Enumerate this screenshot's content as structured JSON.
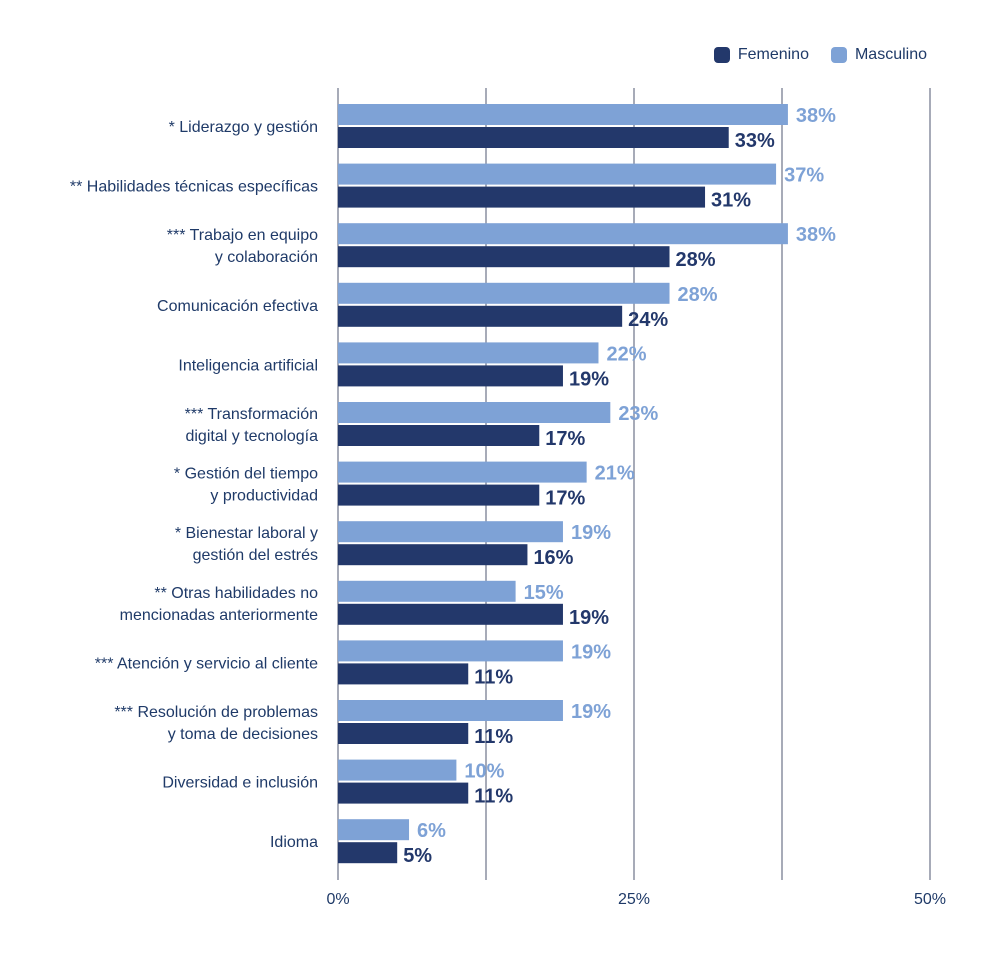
{
  "chart_data": {
    "type": "bar",
    "orientation": "horizontal",
    "categories": [
      [
        "* Liderazgo y gestión"
      ],
      [
        "** Habilidades técnicas específicas"
      ],
      [
        "*** Trabajo en equipo",
        "y colaboración"
      ],
      [
        "Comunicación efectiva"
      ],
      [
        "Inteligencia artificial"
      ],
      [
        "*** Transformación",
        "digital y tecnología"
      ],
      [
        "* Gestión del tiempo",
        "y productividad"
      ],
      [
        "* Bienestar laboral y",
        "gestión del estrés"
      ],
      [
        "** Otras habilidades no",
        "mencionadas anteriormente"
      ],
      [
        "*** Atención y servicio al cliente"
      ],
      [
        "*** Resolución de problemas",
        "y toma de decisiones"
      ],
      [
        "Diversidad e inclusión"
      ],
      [
        "Idioma"
      ]
    ],
    "series": [
      {
        "name": "Masculino",
        "color": "#7ea2d6",
        "values": [
          38,
          37,
          38,
          28,
          22,
          23,
          21,
          19,
          15,
          19,
          19,
          10,
          6
        ]
      },
      {
        "name": "Femenino",
        "color": "#23386b",
        "values": [
          33,
          31,
          28,
          24,
          19,
          17,
          17,
          16,
          19,
          11,
          11,
          11,
          5
        ]
      }
    ],
    "xlim": [
      0,
      50
    ],
    "xticks": [
      0,
      25,
      50
    ],
    "xtick_labels": [
      "0%",
      "25%",
      "50%"
    ],
    "gridlines": [
      0,
      12.5,
      25,
      37.5,
      50
    ],
    "value_suffix": "%",
    "legend": {
      "position": "top-right",
      "entries": [
        {
          "name": "Femenino",
          "color": "#23386b"
        },
        {
          "name": "Masculino",
          "color": "#7ea2d6"
        }
      ]
    },
    "title": "",
    "xlabel": "",
    "ylabel": ""
  }
}
